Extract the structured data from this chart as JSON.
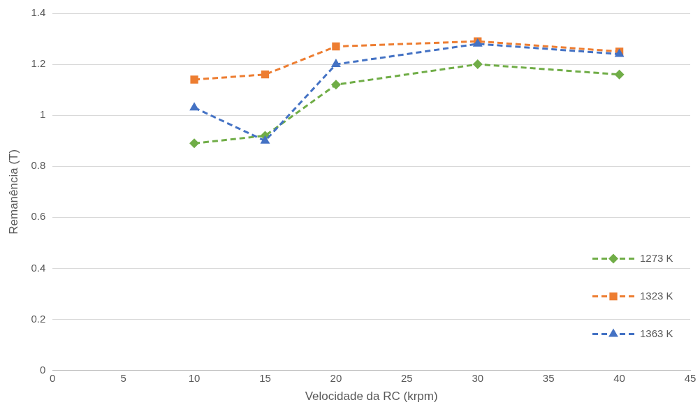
{
  "chart_data": {
    "type": "line",
    "xlabel": "Velocidade da RC (krpm)",
    "ylabel": "Remanência (T)",
    "x": [
      10,
      15,
      20,
      30,
      40
    ],
    "series": [
      {
        "name": "1273 K",
        "color": "#70ad47",
        "marker": "diamond",
        "values": [
          0.89,
          0.92,
          1.12,
          1.2,
          1.16
        ]
      },
      {
        "name": "1323 K",
        "color": "#ed7d31",
        "marker": "square",
        "values": [
          1.14,
          1.16,
          1.27,
          1.29,
          1.25
        ]
      },
      {
        "name": "1363 K",
        "color": "#4472c4",
        "marker": "triangle",
        "values": [
          1.03,
          0.9,
          1.2,
          1.28,
          1.24
        ]
      }
    ],
    "xlim": [
      0,
      45
    ],
    "xticks": [
      0,
      5,
      10,
      15,
      20,
      25,
      30,
      35,
      40,
      45
    ],
    "ylim": [
      0,
      1.4
    ],
    "yticks": [
      0,
      0.2,
      0.4,
      0.6,
      0.8,
      1,
      1.2,
      1.4
    ],
    "grid": "y",
    "legend": "bottom right",
    "line_style": "dashed"
  }
}
